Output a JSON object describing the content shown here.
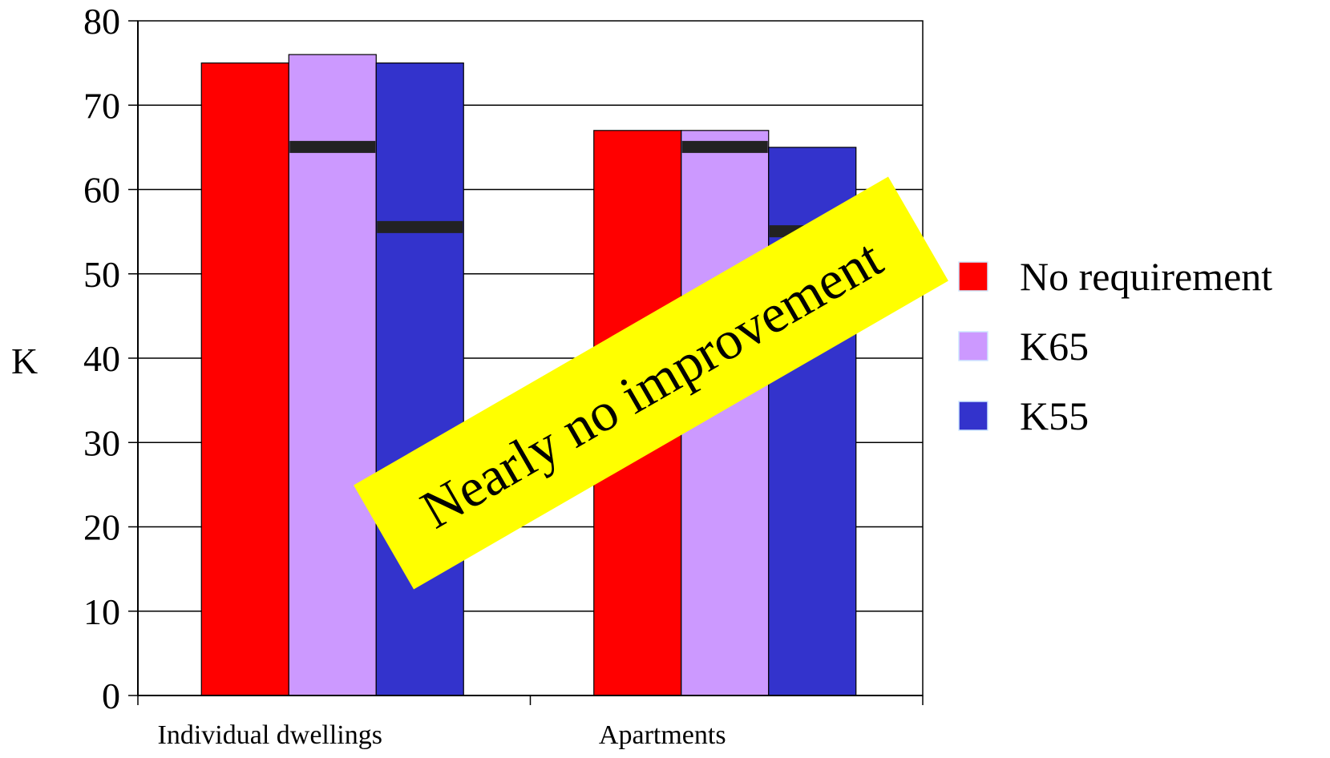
{
  "chart_data": {
    "type": "bar",
    "categories": [
      "Individual dwellings",
      "Apartments"
    ],
    "series": [
      {
        "name": "No requirement",
        "values": [
          75,
          67
        ],
        "color": "#ff0000"
      },
      {
        "name": "K65",
        "values": [
          76,
          67
        ],
        "color": "#cc99ff",
        "requirement": [
          65,
          65
        ]
      },
      {
        "name": "K55",
        "values": [
          75,
          65
        ],
        "color": "#3333cc",
        "requirement": [
          55.5,
          55
        ]
      }
    ],
    "ylabel": "K",
    "ylim": [
      0,
      80
    ],
    "yticks": [
      0,
      10,
      20,
      30,
      40,
      50,
      60,
      70,
      80
    ],
    "grid": true,
    "legend_position": "right",
    "annotation": {
      "text": "Nearly no improvement",
      "background": "#ffff00"
    },
    "requirement_marker_color": "#222222"
  }
}
